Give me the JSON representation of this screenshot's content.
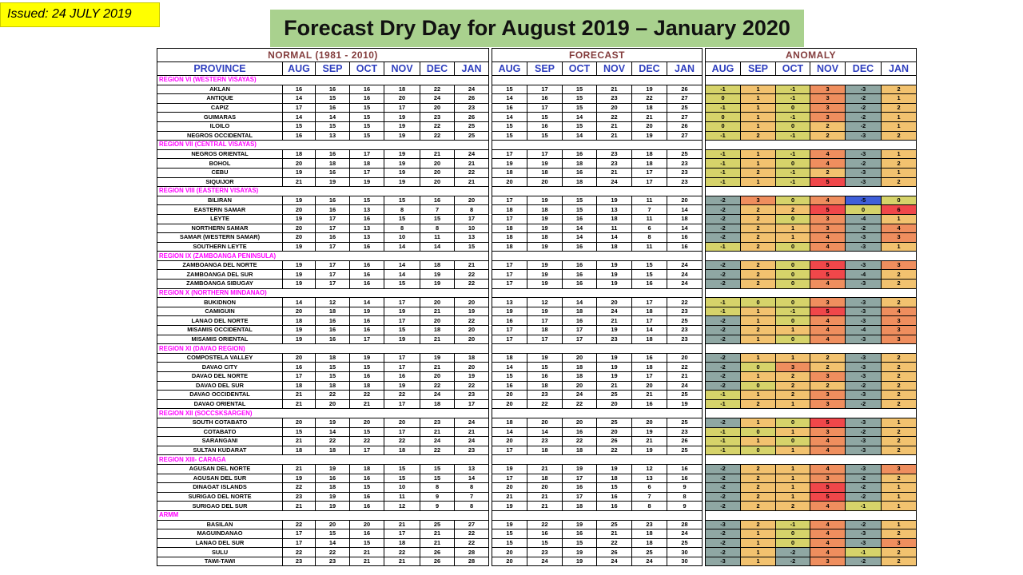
{
  "issued": "Issued: 24 JULY 2019",
  "title": "Forecast Dry Day for August 2019 – January 2020",
  "headers": {
    "normal": "NORMAL (1981 - 2010)",
    "forecast": "FORECAST",
    "anomaly": "ANOMALY",
    "province": "PROVINCE",
    "months": [
      "AUG",
      "SEP",
      "OCT",
      "NOV",
      "DEC",
      "JAN"
    ]
  },
  "colors": {
    "anomaly_neg_strong": "#3f5fd9",
    "anomaly_neg": "#8fa7a3",
    "anomaly_neutral": "#d6d36a",
    "anomaly_pos_small": "#f2c26f",
    "anomaly_pos_mid": "#ef8e5e",
    "anomaly_pos_high": "#f0474a",
    "title_bg": "#a9d18e",
    "issued_bg": "#ffff00",
    "region_text": "#ff00ff"
  },
  "regions": [
    {
      "name": "REGION VI (WESTERN VISAYAS)",
      "rows": [
        {
          "p": "AKLAN",
          "n": [
            16,
            16,
            16,
            18,
            22,
            24
          ],
          "f": [
            15,
            17,
            15,
            21,
            19,
            26
          ],
          "a": [
            -1,
            1,
            -1,
            3,
            -3,
            2
          ]
        },
        {
          "p": "ANTIQUE",
          "n": [
            14,
            15,
            16,
            20,
            24,
            26
          ],
          "f": [
            14,
            16,
            15,
            23,
            22,
            27
          ],
          "a": [
            0,
            1,
            -1,
            3,
            -2,
            1
          ]
        },
        {
          "p": "CAPIZ",
          "n": [
            17,
            16,
            15,
            17,
            20,
            23
          ],
          "f": [
            16,
            17,
            15,
            20,
            18,
            25
          ],
          "a": [
            -1,
            1,
            0,
            3,
            -2,
            2
          ]
        },
        {
          "p": "GUIMARAS",
          "n": [
            14,
            14,
            15,
            19,
            23,
            26
          ],
          "f": [
            14,
            15,
            14,
            22,
            21,
            27
          ],
          "a": [
            0,
            1,
            -1,
            3,
            -2,
            1
          ]
        },
        {
          "p": "ILOILO",
          "n": [
            15,
            15,
            15,
            19,
            22,
            25
          ],
          "f": [
            15,
            16,
            15,
            21,
            20,
            26
          ],
          "a": [
            0,
            1,
            0,
            2,
            -2,
            1
          ]
        },
        {
          "p": "NEGROS OCCIDENTAL",
          "n": [
            16,
            13,
            15,
            19,
            22,
            25
          ],
          "f": [
            15,
            15,
            14,
            21,
            19,
            27
          ],
          "a": [
            -1,
            2,
            -1,
            2,
            -3,
            2
          ]
        }
      ]
    },
    {
      "name": "REGION VII (CENTRAL VISAYAS)",
      "rows": [
        {
          "p": "NEGROS ORIENTAL",
          "n": [
            18,
            16,
            17,
            19,
            21,
            24
          ],
          "f": [
            17,
            17,
            16,
            23,
            18,
            25
          ],
          "a": [
            -1,
            1,
            -1,
            4,
            -3,
            1
          ]
        },
        {
          "p": "BOHOL",
          "n": [
            20,
            18,
            18,
            19,
            20,
            21
          ],
          "f": [
            19,
            19,
            18,
            23,
            18,
            23
          ],
          "a": [
            -1,
            1,
            0,
            4,
            -2,
            2
          ]
        },
        {
          "p": "CEBU",
          "n": [
            19,
            16,
            17,
            19,
            20,
            22
          ],
          "f": [
            18,
            18,
            16,
            21,
            17,
            23
          ],
          "a": [
            -1,
            2,
            -1,
            2,
            -3,
            1
          ]
        },
        {
          "p": "SIQUIJOR",
          "n": [
            21,
            19,
            19,
            19,
            20,
            21
          ],
          "f": [
            20,
            20,
            18,
            24,
            17,
            23
          ],
          "a": [
            -1,
            1,
            -1,
            5,
            -3,
            2
          ]
        }
      ]
    },
    {
      "name": "REGION VIII (EASTERN VISAYAS)",
      "rows": [
        {
          "p": "BILIRAN",
          "n": [
            19,
            16,
            15,
            15,
            16,
            20
          ],
          "f": [
            17,
            19,
            15,
            19,
            11,
            20
          ],
          "a": [
            -2,
            3,
            0,
            4,
            -5,
            0
          ]
        },
        {
          "p": "EASTERN SAMAR",
          "n": [
            20,
            16,
            13,
            8,
            7,
            8
          ],
          "f": [
            18,
            18,
            15,
            13,
            7,
            14
          ],
          "a": [
            -2,
            2,
            2,
            5,
            0,
            6
          ]
        },
        {
          "p": "LEYTE",
          "n": [
            19,
            17,
            16,
            15,
            15,
            17
          ],
          "f": [
            17,
            19,
            16,
            18,
            11,
            18
          ],
          "a": [
            -2,
            2,
            0,
            3,
            -4,
            1
          ]
        },
        {
          "p": "NORTHERN SAMAR",
          "n": [
            20,
            17,
            13,
            8,
            8,
            10
          ],
          "f": [
            18,
            19,
            14,
            11,
            6,
            14
          ],
          "a": [
            -2,
            2,
            1,
            3,
            -2,
            4
          ]
        },
        {
          "p": "SAMAR (WESTERN SAMAR)",
          "n": [
            20,
            16,
            13,
            10,
            11,
            13
          ],
          "f": [
            18,
            18,
            14,
            14,
            8,
            16
          ],
          "a": [
            -2,
            2,
            1,
            4,
            -3,
            3
          ]
        },
        {
          "p": "SOUTHERN LEYTE",
          "n": [
            19,
            17,
            16,
            14,
            14,
            15
          ],
          "f": [
            18,
            19,
            16,
            18,
            11,
            16
          ],
          "a": [
            -1,
            2,
            0,
            4,
            -3,
            1
          ]
        }
      ]
    },
    {
      "name": "REGION IX (ZAMBOANGA PENINSULA)",
      "rows": [
        {
          "p": "ZAMBOANGA DEL NORTE",
          "n": [
            19,
            17,
            16,
            14,
            18,
            21
          ],
          "f": [
            17,
            19,
            16,
            19,
            15,
            24
          ],
          "a": [
            -2,
            2,
            0,
            5,
            -3,
            3
          ]
        },
        {
          "p": "ZAMBOANGA DEL SUR",
          "n": [
            19,
            17,
            16,
            14,
            19,
            22
          ],
          "f": [
            17,
            19,
            16,
            19,
            15,
            24
          ],
          "a": [
            -2,
            2,
            0,
            5,
            -4,
            2
          ]
        },
        {
          "p": "ZAMBOANGA SIBUGAY",
          "n": [
            19,
            17,
            16,
            15,
            19,
            22
          ],
          "f": [
            17,
            19,
            16,
            19,
            16,
            24
          ],
          "a": [
            -2,
            2,
            0,
            4,
            -3,
            2
          ]
        }
      ]
    },
    {
      "name": "REGION X (NORTHERN MINDANAO)",
      "rows": [
        {
          "p": "BUKIDNON",
          "n": [
            14,
            12,
            14,
            17,
            20,
            20
          ],
          "f": [
            13,
            12,
            14,
            20,
            17,
            22
          ],
          "a": [
            -1,
            0,
            0,
            3,
            -3,
            2
          ]
        },
        {
          "p": "CAMIGUIN",
          "n": [
            20,
            18,
            19,
            19,
            21,
            19
          ],
          "f": [
            19,
            19,
            18,
            24,
            18,
            23
          ],
          "a": [
            -1,
            1,
            -1,
            5,
            -3,
            4
          ]
        },
        {
          "p": "LANAO DEL NORTE",
          "n": [
            18,
            16,
            16,
            17,
            20,
            22
          ],
          "f": [
            16,
            17,
            16,
            21,
            17,
            25
          ],
          "a": [
            -2,
            1,
            0,
            4,
            -3,
            3
          ]
        },
        {
          "p": "MISAMIS OCCIDENTAL",
          "n": [
            19,
            16,
            16,
            15,
            18,
            20
          ],
          "f": [
            17,
            18,
            17,
            19,
            14,
            23
          ],
          "a": [
            -2,
            2,
            1,
            4,
            -4,
            3
          ]
        },
        {
          "p": "MISAMIS ORIENTAL",
          "n": [
            19,
            16,
            17,
            19,
            21,
            20
          ],
          "f": [
            17,
            17,
            17,
            23,
            18,
            23
          ],
          "a": [
            -2,
            1,
            0,
            4,
            -3,
            3
          ]
        }
      ]
    },
    {
      "name": "REGION XI (DAVAO REGION)",
      "rows": [
        {
          "p": "COMPOSTELA VALLEY",
          "n": [
            20,
            18,
            19,
            17,
            19,
            18
          ],
          "f": [
            18,
            19,
            20,
            19,
            16,
            20
          ],
          "a": [
            -2,
            1,
            1,
            2,
            -3,
            2
          ]
        },
        {
          "p": "DAVAO CITY",
          "n": [
            16,
            15,
            15,
            17,
            21,
            20
          ],
          "f": [
            14,
            15,
            18,
            19,
            18,
            22
          ],
          "a": [
            -2,
            0,
            3,
            2,
            -3,
            2
          ]
        },
        {
          "p": "DAVAO DEL NORTE",
          "n": [
            17,
            15,
            16,
            16,
            20,
            19
          ],
          "f": [
            15,
            16,
            18,
            19,
            17,
            21
          ],
          "a": [
            -2,
            1,
            2,
            3,
            -3,
            2
          ]
        },
        {
          "p": "DAVAO DEL SUR",
          "n": [
            18,
            18,
            18,
            19,
            22,
            22
          ],
          "f": [
            16,
            18,
            20,
            21,
            20,
            24
          ],
          "a": [
            -2,
            0,
            2,
            2,
            -2,
            2
          ]
        },
        {
          "p": "DAVAO OCCIDENTAL",
          "n": [
            21,
            22,
            22,
            22,
            24,
            23
          ],
          "f": [
            20,
            23,
            24,
            25,
            21,
            25
          ],
          "a": [
            -1,
            1,
            2,
            3,
            -3,
            2
          ]
        },
        {
          "p": "DAVAO ORIENTAL",
          "n": [
            21,
            20,
            21,
            17,
            18,
            17
          ],
          "f": [
            20,
            22,
            22,
            20,
            16,
            19
          ],
          "a": [
            -1,
            2,
            1,
            3,
            -2,
            2
          ]
        }
      ]
    },
    {
      "name": "REGION XII (SOCCSKSARGEN)",
      "rows": [
        {
          "p": "SOUTH COTABATO",
          "n": [
            20,
            19,
            20,
            20,
            23,
            24
          ],
          "f": [
            18,
            20,
            20,
            25,
            20,
            25
          ],
          "a": [
            -2,
            1,
            0,
            5,
            -3,
            1
          ]
        },
        {
          "p": "COTABATO",
          "n": [
            15,
            14,
            15,
            17,
            21,
            21
          ],
          "f": [
            14,
            14,
            16,
            20,
            19,
            23
          ],
          "a": [
            -1,
            0,
            1,
            3,
            -2,
            2
          ]
        },
        {
          "p": "SARANGANI",
          "n": [
            21,
            22,
            22,
            22,
            24,
            24
          ],
          "f": [
            20,
            23,
            22,
            26,
            21,
            26
          ],
          "a": [
            -1,
            1,
            0,
            4,
            -3,
            2
          ]
        },
        {
          "p": "SULTAN KUDARAT",
          "n": [
            18,
            18,
            17,
            18,
            22,
            23
          ],
          "f": [
            17,
            18,
            18,
            22,
            19,
            25
          ],
          "a": [
            -1,
            0,
            1,
            4,
            -3,
            2
          ]
        }
      ]
    },
    {
      "name": "REGION XIII- CARAGA",
      "rows": [
        {
          "p": "AGUSAN DEL NORTE",
          "n": [
            21,
            19,
            18,
            15,
            15,
            13
          ],
          "f": [
            19,
            21,
            19,
            19,
            12,
            16
          ],
          "a": [
            -2,
            2,
            1,
            4,
            -3,
            3
          ]
        },
        {
          "p": "AGUSAN DEL SUR",
          "n": [
            19,
            16,
            16,
            15,
            15,
            14
          ],
          "f": [
            17,
            18,
            17,
            18,
            13,
            16
          ],
          "a": [
            -2,
            2,
            1,
            3,
            -2,
            2
          ]
        },
        {
          "p": "DINAGAT ISLANDS",
          "n": [
            22,
            18,
            15,
            10,
            8,
            8
          ],
          "f": [
            20,
            20,
            16,
            15,
            6,
            9
          ],
          "a": [
            -2,
            2,
            1,
            5,
            -2,
            1
          ]
        },
        {
          "p": "SURIGAO DEL NORTE",
          "n": [
            23,
            19,
            16,
            11,
            9,
            7
          ],
          "f": [
            21,
            21,
            17,
            16,
            7,
            8
          ],
          "a": [
            -2,
            2,
            1,
            5,
            -2,
            1
          ]
        },
        {
          "p": "SURIGAO DEL SUR",
          "n": [
            21,
            19,
            16,
            12,
            9,
            8
          ],
          "f": [
            19,
            21,
            18,
            16,
            8,
            9
          ],
          "a": [
            -2,
            2,
            2,
            4,
            -1,
            1
          ]
        }
      ]
    },
    {
      "name": "ARMM",
      "rows": [
        {
          "p": "BASILAN",
          "n": [
            22,
            20,
            20,
            21,
            25,
            27
          ],
          "f": [
            19,
            22,
            19,
            25,
            23,
            28
          ],
          "a": [
            -3,
            2,
            -1,
            4,
            -2,
            1
          ]
        },
        {
          "p": "MAGUINDANAO",
          "n": [
            17,
            15,
            16,
            17,
            21,
            22
          ],
          "f": [
            15,
            16,
            16,
            21,
            18,
            24
          ],
          "a": [
            -2,
            1,
            0,
            4,
            -3,
            2
          ]
        },
        {
          "p": "LANAO DEL SUR",
          "n": [
            17,
            14,
            15,
            18,
            21,
            22
          ],
          "f": [
            15,
            15,
            15,
            22,
            18,
            25
          ],
          "a": [
            -2,
            1,
            0,
            4,
            -3,
            3
          ]
        },
        {
          "p": "SULU",
          "n": [
            22,
            22,
            21,
            22,
            26,
            28
          ],
          "f": [
            20,
            23,
            19,
            26,
            25,
            30
          ],
          "a": [
            -2,
            1,
            -2,
            4,
            -1,
            2
          ]
        },
        {
          "p": "TAWI-TAWI",
          "n": [
            23,
            23,
            21,
            21,
            26,
            28
          ],
          "f": [
            20,
            24,
            19,
            24,
            24,
            30
          ],
          "a": [
            -3,
            1,
            -2,
            3,
            -2,
            2
          ]
        }
      ]
    }
  ]
}
